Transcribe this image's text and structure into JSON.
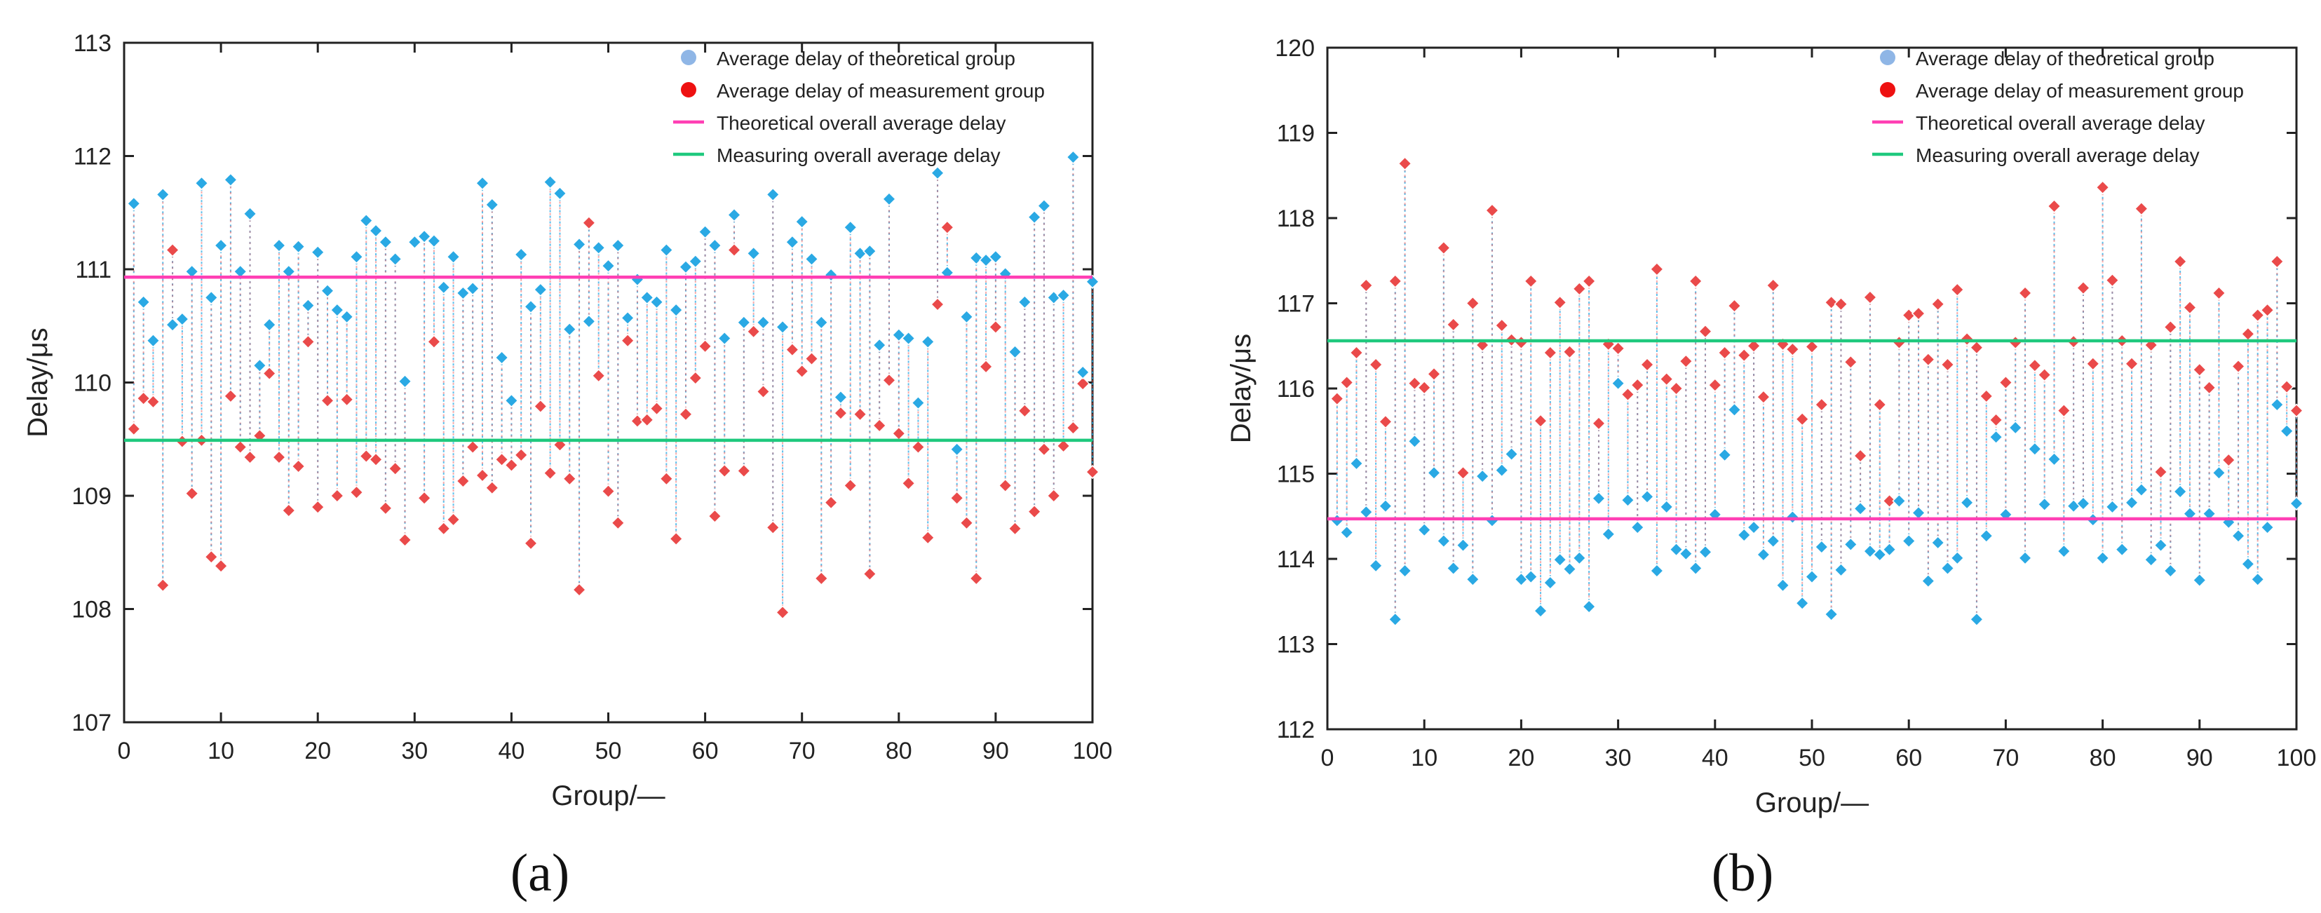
{
  "colors": {
    "theory_points": "#2aa9e4",
    "measure_points": "#ea4a4a",
    "theory_line": "#ff3fb4",
    "measure_line": "#1fc97e",
    "legend_theory_marker": "#8fb6e6",
    "legend_measure_marker": "#ee1111"
  },
  "chart_data": [
    {
      "id": "a",
      "type": "scatter",
      "panel_label": "(a)",
      "xlabel": "Group/—",
      "ylabel": "Delay/μs",
      "xlim": [
        0,
        100
      ],
      "ylim": [
        107,
        113
      ],
      "xticks": [
        0,
        10,
        20,
        30,
        40,
        50,
        60,
        70,
        80,
        90,
        100
      ],
      "yticks": [
        107,
        108,
        109,
        110,
        111,
        112,
        113
      ],
      "legend": {
        "position": "top-right",
        "entries": [
          "Average delay of theoretical group",
          "Average delay of measurement group",
          "Theoretical overall average delay",
          "Measuring overall average delay"
        ]
      },
      "theoretical_overall_average": 110.93,
      "measuring_overall_average": 109.49,
      "series": [
        {
          "name": "Average delay of theoretical group",
          "values": [
            111.58,
            110.71,
            110.37,
            111.66,
            110.51,
            110.56,
            110.98,
            111.76,
            110.75,
            111.21,
            111.79,
            110.98,
            111.49,
            110.15,
            110.51,
            111.21,
            110.98,
            111.2,
            110.68,
            111.15,
            110.81,
            110.64,
            110.58,
            111.11,
            111.43,
            111.34,
            111.24,
            111.09,
            110.01,
            111.24,
            111.29,
            111.25,
            110.84,
            111.11,
            110.79,
            110.83,
            111.76,
            111.57,
            110.22,
            109.84,
            111.13,
            110.67,
            110.82,
            111.77,
            111.67,
            110.47,
            111.22,
            110.54,
            111.19,
            111.03,
            111.21,
            110.57,
            110.91,
            110.75,
            110.71,
            111.17,
            110.64,
            111.02,
            111.07,
            111.33,
            111.21,
            110.39,
            111.48,
            110.53,
            111.14,
            110.53,
            111.66,
            110.49,
            111.24,
            111.42,
            111.09,
            110.53,
            110.95,
            109.87,
            111.37,
            111.14,
            111.16,
            110.33,
            111.62,
            110.42,
            110.39,
            109.82,
            110.36,
            111.85,
            110.97,
            109.41,
            110.58,
            111.1,
            111.08,
            111.11,
            110.96,
            110.27,
            110.71,
            111.46,
            111.56,
            110.75,
            110.77,
            111.99,
            110.09,
            110.89
          ]
        },
        {
          "name": "Average delay of measurement group",
          "values": [
            109.59,
            109.86,
            109.83,
            108.21,
            111.17,
            109.48,
            109.02,
            109.49,
            108.46,
            108.38,
            109.88,
            109.43,
            109.34,
            109.53,
            110.08,
            109.34,
            108.87,
            109.26,
            110.36,
            108.9,
            109.84,
            109.0,
            109.85,
            109.03,
            109.35,
            109.32,
            108.89,
            109.24,
            108.61,
            111.24,
            108.98,
            110.36,
            108.71,
            108.79,
            109.13,
            109.43,
            109.18,
            109.07,
            109.32,
            109.27,
            109.36,
            108.58,
            109.79,
            109.2,
            109.45,
            109.15,
            108.17,
            111.41,
            110.06,
            109.04,
            108.76,
            110.37,
            109.66,
            109.67,
            109.77,
            109.15,
            108.62,
            109.72,
            110.04,
            110.32,
            108.82,
            109.22,
            111.17,
            109.22,
            110.45,
            109.92,
            108.72,
            107.97,
            110.29,
            110.1,
            110.21,
            108.27,
            108.94,
            109.73,
            109.09,
            109.72,
            108.31,
            109.62,
            110.02,
            109.55,
            109.11,
            109.43,
            108.63,
            110.69,
            111.37,
            108.98,
            108.76,
            108.27,
            110.14,
            110.49,
            109.09,
            108.71,
            109.75,
            108.86,
            109.41,
            109.0,
            109.44,
            109.6,
            109.99,
            109.21
          ]
        }
      ]
    },
    {
      "id": "b",
      "type": "scatter",
      "panel_label": "(b)",
      "xlabel": "Group/—",
      "ylabel": "Delay/μs",
      "xlim": [
        0,
        100
      ],
      "ylim": [
        112,
        120
      ],
      "xticks": [
        0,
        10,
        20,
        30,
        40,
        50,
        60,
        70,
        80,
        90,
        100
      ],
      "yticks": [
        112,
        113,
        114,
        115,
        116,
        117,
        118,
        119,
        120
      ],
      "legend": {
        "position": "top-right",
        "entries": [
          "Average delay of theoretical group",
          "Average delay of measurement group",
          "Theoretical overall average delay",
          "Measuring overall average delay"
        ]
      },
      "theoretical_overall_average": 114.47,
      "measuring_overall_average": 116.56,
      "series": [
        {
          "name": "Average delay of theoretical group",
          "values": [
            114.45,
            114.31,
            115.12,
            114.55,
            113.92,
            114.62,
            113.29,
            113.86,
            115.38,
            114.34,
            115.01,
            114.21,
            113.89,
            114.16,
            113.76,
            114.97,
            114.45,
            115.04,
            115.23,
            113.76,
            113.79,
            113.39,
            113.72,
            113.99,
            113.88,
            114.01,
            113.44,
            114.71,
            114.29,
            116.06,
            114.69,
            114.37,
            114.73,
            113.86,
            114.61,
            114.11,
            114.06,
            113.89,
            114.08,
            114.52,
            115.22,
            115.75,
            114.28,
            114.37,
            114.05,
            114.21,
            113.69,
            114.49,
            113.48,
            113.79,
            114.14,
            113.35,
            113.87,
            114.17,
            114.59,
            114.09,
            114.05,
            114.11,
            114.68,
            114.21,
            114.54,
            113.74,
            114.19,
            113.89,
            114.01,
            114.66,
            113.29,
            114.27,
            115.43,
            114.52,
            115.54,
            114.01,
            115.29,
            114.64,
            115.17,
            114.09,
            114.62,
            114.65,
            114.46,
            114.01,
            114.61,
            114.11,
            114.66,
            114.81,
            113.99,
            114.16,
            113.86,
            114.79,
            114.53,
            113.75,
            114.53,
            115.01,
            114.43,
            114.27,
            113.94,
            113.76,
            114.37,
            115.81,
            115.5,
            114.65
          ]
        },
        {
          "name": "Average delay of measurement group",
          "values": [
            115.88,
            116.07,
            116.42,
            117.21,
            116.28,
            115.61,
            117.26,
            118.64,
            116.06,
            116.01,
            116.17,
            117.65,
            116.75,
            115.01,
            117.0,
            116.51,
            118.09,
            116.74,
            116.57,
            116.54,
            117.26,
            115.62,
            116.42,
            117.01,
            116.43,
            117.17,
            117.26,
            115.59,
            116.52,
            116.47,
            115.93,
            116.04,
            116.28,
            117.4,
            116.11,
            116.0,
            116.32,
            117.26,
            116.67,
            116.04,
            116.42,
            116.97,
            116.39,
            116.5,
            115.9,
            117.21,
            116.52,
            116.46,
            115.64,
            116.49,
            115.81,
            117.01,
            116.99,
            116.31,
            115.21,
            117.07,
            115.81,
            114.68,
            116.54,
            116.86,
            116.88,
            116.34,
            116.99,
            116.28,
            117.16,
            116.58,
            116.48,
            115.91,
            115.63,
            116.07,
            116.54,
            117.12,
            116.27,
            116.16,
            118.14,
            115.74,
            116.55,
            117.18,
            116.29,
            118.36,
            117.27,
            116.56,
            116.29,
            118.11,
            116.51,
            115.02,
            116.72,
            117.49,
            116.95,
            116.22,
            116.01,
            117.12,
            115.16,
            116.26,
            116.64,
            116.86,
            116.92,
            117.49,
            116.02,
            115.74
          ]
        }
      ]
    }
  ]
}
